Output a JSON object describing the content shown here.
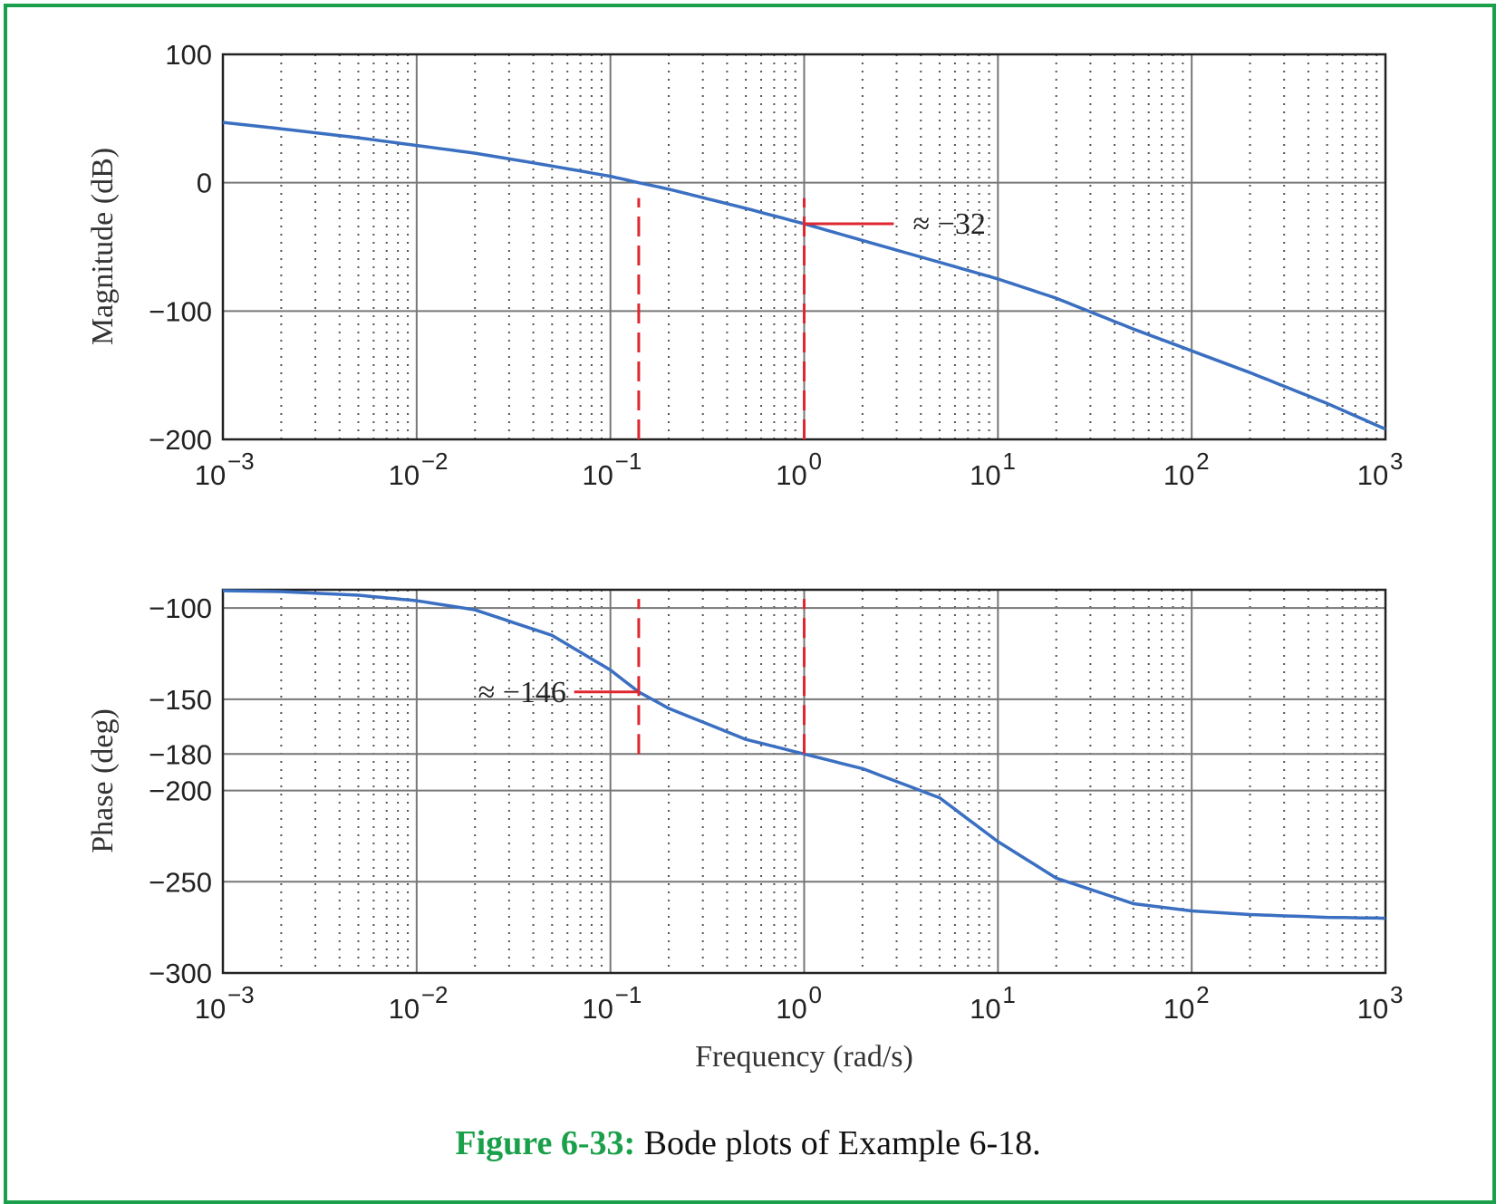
{
  "caption": {
    "label": "Figure 6-33:",
    "text": " Bode plots of Example 6-18."
  },
  "colors": {
    "curve": "#3a6fc1",
    "marker": "#e0262e",
    "frame": "#1aa04a",
    "caption_label": "#1aa04a"
  },
  "chart_data": [
    {
      "type": "line",
      "ylabel": "Magnitude (dB)",
      "xscale": "log",
      "xlim": [
        0.001,
        1000
      ],
      "ylim": [
        -200,
        100
      ],
      "yticks": [
        100,
        0,
        -100,
        -200
      ],
      "ytick_labels": [
        "100",
        "0",
        "−100",
        "−200"
      ],
      "xticks_exp": [
        "−3",
        "−2",
        "−1",
        "0",
        "1",
        "2",
        "3"
      ],
      "grid": true,
      "series": [
        {
          "x": [
            0.001,
            0.002,
            0.005,
            0.01,
            0.02,
            0.05,
            0.1,
            0.14,
            0.2,
            0.5,
            1,
            2,
            5,
            10,
            20,
            50,
            100,
            200,
            500,
            1000
          ],
          "y": [
            47,
            42,
            35,
            29,
            23,
            13,
            5,
            0,
            -5,
            -20,
            -32,
            -45,
            -62,
            -75,
            -90,
            -114,
            -131,
            -148,
            -172,
            -192
          ]
        }
      ],
      "annotations": [
        {
          "text": "≈ −32",
          "x": 1,
          "y": -32
        }
      ],
      "markers": [
        {
          "kind": "vline",
          "x": 0.14,
          "y_from": -200,
          "y_to": -12
        },
        {
          "kind": "vline",
          "x": 1,
          "y_from": -200,
          "y_to": -12
        },
        {
          "kind": "hline",
          "y": -32,
          "x_from": 1,
          "x_to": 2.9
        }
      ]
    },
    {
      "type": "line",
      "ylabel": "Phase (deg)",
      "xlabel": "Frequency (rad/s)",
      "xscale": "log",
      "xlim": [
        0.001,
        1000
      ],
      "ylim": [
        -300,
        -90
      ],
      "yticks": [
        -100,
        -150,
        -180,
        -200,
        -250,
        -300
      ],
      "ytick_labels": [
        "−100",
        "−150",
        "−180",
        "−200",
        "−250",
        "−300"
      ],
      "xticks_exp": [
        "−3",
        "−2",
        "−1",
        "0",
        "1",
        "2",
        "3"
      ],
      "grid": true,
      "series": [
        {
          "x": [
            0.001,
            0.002,
            0.005,
            0.01,
            0.02,
            0.05,
            0.1,
            0.14,
            0.2,
            0.5,
            1,
            2,
            5,
            10,
            20,
            50,
            100,
            200,
            500,
            1000
          ],
          "y": [
            -90.5,
            -91,
            -93,
            -96,
            -101,
            -115,
            -134,
            -146,
            -155,
            -172,
            -180,
            -188,
            -204,
            -228,
            -248,
            -262,
            -266,
            -268,
            -269.5,
            -270
          ]
        }
      ],
      "annotations": [
        {
          "text": "≈ −146",
          "x": 0.14,
          "y": -146
        }
      ],
      "markers": [
        {
          "kind": "vline",
          "x": 0.14,
          "y_from": -180,
          "y_to": -95
        },
        {
          "kind": "vline",
          "x": 1,
          "y_from": -180,
          "y_to": -95
        },
        {
          "kind": "hline",
          "y": -146,
          "x_from": 0.065,
          "x_to": 0.14
        }
      ]
    }
  ]
}
